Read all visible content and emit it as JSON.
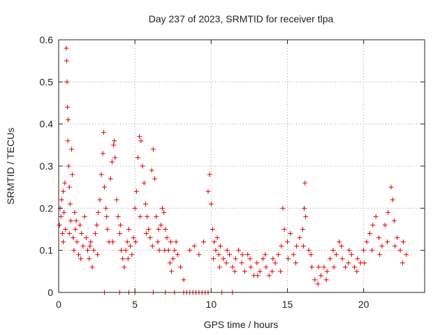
{
  "chart_data": {
    "type": "scatter",
    "title": "Day 237 of 2023, SRMTID for receiver tlpa",
    "xlabel": "GPS time / hours",
    "ylabel": "SRMTID / TECUs",
    "xlim": [
      0,
      24
    ],
    "ylim": [
      0,
      0.6
    ],
    "xticks": [
      0,
      5,
      10,
      15,
      20
    ],
    "xtick_labels": [
      "0",
      "5",
      "10",
      "15",
      "20"
    ],
    "yticks": [
      0,
      0.1,
      0.2,
      0.3,
      0.4,
      0.5,
      0.6
    ],
    "ytick_labels": [
      "0",
      "0.1",
      "0.2",
      "0.3",
      "0.4",
      "0.5",
      "0.6"
    ],
    "grid": true,
    "marker": "+",
    "series": [
      {
        "name": "SRMTID",
        "color": "#e00000",
        "points": [
          [
            0.05,
            0.16
          ],
          [
            0.1,
            0.2
          ],
          [
            0.15,
            0.18
          ],
          [
            0.2,
            0.22
          ],
          [
            0.25,
            0.14
          ],
          [
            0.3,
            0.24
          ],
          [
            0.35,
            0.19
          ],
          [
            0.4,
            0.26
          ],
          [
            0.45,
            0.15
          ],
          [
            0.5,
            0.58
          ],
          [
            0.52,
            0.55
          ],
          [
            0.55,
            0.5
          ],
          [
            0.58,
            0.44
          ],
          [
            0.6,
            0.36
          ],
          [
            0.62,
            0.41
          ],
          [
            0.65,
            0.3
          ],
          [
            0.7,
            0.25
          ],
          [
            0.75,
            0.21
          ],
          [
            0.8,
            0.17
          ],
          [
            0.85,
            0.34
          ],
          [
            0.9,
            0.28
          ],
          [
            0.95,
            0.13
          ],
          [
            1.0,
            0.1
          ],
          [
            1.05,
            0.19
          ],
          [
            1.1,
            0.15
          ],
          [
            1.2,
            0.12
          ],
          [
            1.3,
            0.09
          ],
          [
            1.4,
            0.16
          ],
          [
            1.5,
            0.14
          ],
          [
            1.6,
            0.11
          ],
          [
            1.7,
            0.18
          ],
          [
            1.8,
            0.13
          ],
          [
            1.9,
            0.1
          ],
          [
            2.0,
            0.08
          ],
          [
            2.1,
            0.12
          ],
          [
            2.2,
            0.06
          ],
          [
            2.3,
            0.1
          ],
          [
            2.4,
            0.14
          ],
          [
            2.5,
            0.16
          ],
          [
            2.6,
            0.19
          ],
          [
            2.7,
            0.22
          ],
          [
            2.8,
            0.28
          ],
          [
            2.9,
            0.33
          ],
          [
            2.95,
            0.38
          ],
          [
            3.0,
            0.25
          ],
          [
            3.1,
            0.2
          ],
          [
            3.2,
            0.15
          ],
          [
            3.3,
            0.12
          ],
          [
            3.4,
            0.27
          ],
          [
            3.5,
            0.31
          ],
          [
            3.6,
            0.35
          ],
          [
            3.65,
            0.36
          ],
          [
            3.7,
            0.32
          ],
          [
            3.8,
            0.22
          ],
          [
            3.9,
            0.18
          ],
          [
            4.0,
            0.14
          ],
          [
            4.1,
            0.1
          ],
          [
            4.2,
            0.08
          ],
          [
            4.3,
            0.06
          ],
          [
            4.4,
            0.1
          ],
          [
            4.5,
            0.12
          ],
          [
            4.6,
            0.15
          ],
          [
            4.7,
            0.11
          ],
          [
            4.8,
            0.09
          ],
          [
            4.9,
            0.13
          ],
          [
            5.0,
            0.2
          ],
          [
            5.1,
            0.24
          ],
          [
            5.2,
            0.32
          ],
          [
            5.3,
            0.37
          ],
          [
            5.4,
            0.36
          ],
          [
            5.5,
            0.3
          ],
          [
            5.6,
            0.26
          ],
          [
            5.7,
            0.21
          ],
          [
            5.8,
            0.18
          ],
          [
            5.9,
            0.15
          ],
          [
            6.0,
            0.13
          ],
          [
            6.1,
            0.29
          ],
          [
            6.2,
            0.34
          ],
          [
            6.3,
            0.27
          ],
          [
            6.4,
            0.18
          ],
          [
            6.5,
            0.12
          ],
          [
            6.6,
            0.1
          ],
          [
            6.7,
            0.16
          ],
          [
            6.8,
            0.2
          ],
          [
            6.9,
            0.19
          ],
          [
            7.0,
            0.15
          ],
          [
            7.1,
            0.13
          ],
          [
            7.2,
            0.1
          ],
          [
            7.3,
            0.07
          ],
          [
            7.4,
            0.05
          ],
          [
            7.5,
            0.08
          ],
          [
            7.6,
            0.1
          ],
          [
            7.7,
            0.12
          ],
          [
            7.8,
            0.09
          ],
          [
            8.0,
            0.06
          ],
          [
            8.2,
            0.03
          ],
          [
            8.6,
            0.1
          ],
          [
            8.9,
            0.11
          ],
          [
            9.2,
            0.09
          ],
          [
            9.5,
            0.12
          ],
          [
            9.8,
            0.24
          ],
          [
            9.9,
            0.28
          ],
          [
            10.0,
            0.21
          ],
          [
            10.1,
            0.15
          ],
          [
            10.2,
            0.12
          ],
          [
            10.3,
            0.1
          ],
          [
            10.4,
            0.13
          ],
          [
            10.5,
            0.09
          ],
          [
            10.6,
            0.11
          ],
          [
            10.8,
            0.08
          ],
          [
            11.0,
            0.07
          ],
          [
            11.2,
            0.09
          ],
          [
            11.4,
            0.06
          ],
          [
            11.6,
            0.08
          ],
          [
            11.8,
            0.1
          ],
          [
            12.0,
            0.07
          ],
          [
            12.2,
            0.05
          ],
          [
            12.4,
            0.09
          ],
          [
            12.6,
            0.06
          ],
          [
            12.8,
            0.04
          ],
          [
            13.0,
            0.07
          ],
          [
            13.2,
            0.05
          ],
          [
            13.4,
            0.08
          ],
          [
            13.6,
            0.06
          ],
          [
            13.8,
            0.04
          ],
          [
            14.0,
            0.05
          ],
          [
            14.2,
            0.07
          ],
          [
            14.4,
            0.09
          ],
          [
            14.6,
            0.11
          ],
          [
            14.7,
            0.2
          ],
          [
            14.8,
            0.15
          ],
          [
            15.0,
            0.12
          ],
          [
            15.2,
            0.14
          ],
          [
            15.4,
            0.09
          ],
          [
            15.6,
            0.11
          ],
          [
            15.8,
            0.13
          ],
          [
            16.0,
            0.15
          ],
          [
            16.1,
            0.2
          ],
          [
            16.15,
            0.26
          ],
          [
            16.2,
            0.18
          ],
          [
            16.4,
            0.1
          ],
          [
            16.6,
            0.06
          ],
          [
            16.8,
            0.03
          ],
          [
            17.0,
            0.02
          ],
          [
            17.2,
            0.04
          ],
          [
            17.4,
            0.06
          ],
          [
            17.6,
            0.05
          ],
          [
            17.8,
            0.08
          ],
          [
            18.0,
            0.1
          ],
          [
            18.2,
            0.09
          ],
          [
            18.4,
            0.12
          ],
          [
            18.6,
            0.08
          ],
          [
            18.8,
            0.06
          ],
          [
            19.0,
            0.07
          ],
          [
            19.2,
            0.09
          ],
          [
            19.4,
            0.06
          ],
          [
            19.6,
            0.08
          ],
          [
            19.8,
            0.07
          ],
          [
            20.0,
            0.1
          ],
          [
            20.2,
            0.12
          ],
          [
            20.4,
            0.14
          ],
          [
            20.6,
            0.16
          ],
          [
            20.8,
            0.18
          ],
          [
            21.0,
            0.13
          ],
          [
            21.2,
            0.11
          ],
          [
            21.4,
            0.16
          ],
          [
            21.6,
            0.19
          ],
          [
            21.8,
            0.25
          ],
          [
            21.9,
            0.22
          ],
          [
            22.0,
            0.17
          ],
          [
            22.2,
            0.13
          ],
          [
            22.4,
            0.1
          ],
          [
            22.6,
            0.12
          ],
          [
            22.8,
            0.09
          ],
          [
            0.3,
            0.12
          ],
          [
            0.7,
            0.14
          ],
          [
            1.15,
            0.17
          ],
          [
            1.45,
            0.08
          ],
          [
            2.05,
            0.11
          ],
          [
            2.55,
            0.09
          ],
          [
            3.15,
            0.18
          ],
          [
            3.55,
            0.12
          ],
          [
            4.05,
            0.16
          ],
          [
            4.55,
            0.08
          ],
          [
            5.05,
            0.12
          ],
          [
            5.35,
            0.18
          ],
          [
            5.75,
            0.14
          ],
          [
            6.15,
            0.11
          ],
          [
            6.55,
            0.15
          ],
          [
            6.95,
            0.1
          ],
          [
            7.35,
            0.12
          ],
          [
            10.15,
            0.08
          ],
          [
            10.55,
            0.06
          ],
          [
            11.05,
            0.1
          ],
          [
            11.55,
            0.05
          ],
          [
            12.05,
            0.09
          ],
          [
            12.55,
            0.08
          ],
          [
            13.05,
            0.04
          ],
          [
            13.55,
            0.09
          ],
          [
            14.05,
            0.08
          ],
          [
            14.55,
            0.05
          ],
          [
            15.05,
            0.08
          ],
          [
            15.55,
            0.07
          ],
          [
            16.05,
            0.11
          ],
          [
            16.55,
            0.09
          ],
          [
            17.05,
            0.06
          ],
          [
            17.55,
            0.03
          ],
          [
            18.05,
            0.06
          ],
          [
            18.55,
            0.11
          ],
          [
            19.05,
            0.1
          ],
          [
            19.55,
            0.05
          ],
          [
            20.05,
            0.07
          ],
          [
            20.55,
            0.1
          ],
          [
            21.05,
            0.09
          ],
          [
            21.55,
            0.12
          ],
          [
            22.05,
            0.11
          ],
          [
            22.55,
            0.07
          ],
          [
            3.0,
            0.0
          ],
          [
            4.0,
            0.0
          ],
          [
            4.6,
            0.0
          ],
          [
            5.0,
            0.0
          ],
          [
            6.2,
            0.0
          ],
          [
            7.0,
            0.0
          ],
          [
            7.6,
            0.0
          ],
          [
            8.2,
            0.0
          ],
          [
            8.4,
            0.0
          ],
          [
            8.6,
            0.0
          ],
          [
            8.8,
            0.0
          ],
          [
            9.0,
            0.0
          ],
          [
            9.2,
            0.0
          ],
          [
            9.4,
            0.0
          ],
          [
            9.6,
            0.0
          ],
          [
            9.8,
            0.0
          ],
          [
            10.7,
            0.0
          ],
          [
            11.4,
            0.0
          ]
        ]
      }
    ]
  }
}
